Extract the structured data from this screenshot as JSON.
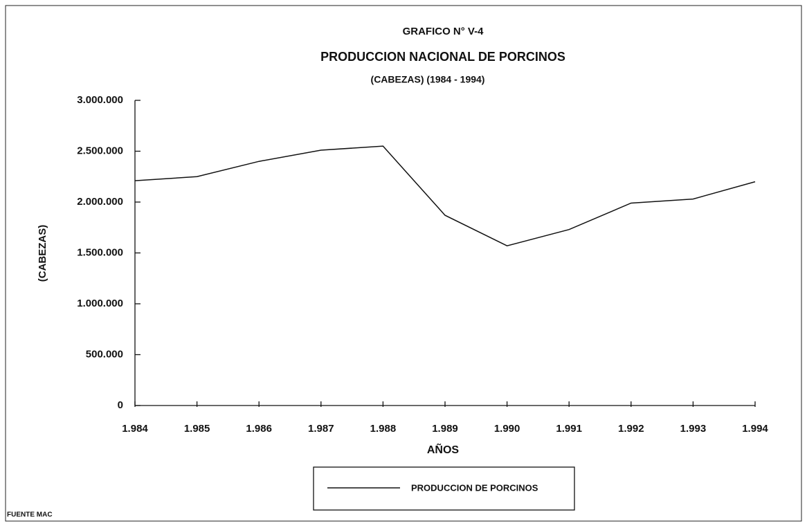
{
  "chart_data": {
    "type": "line",
    "title": "GRAFICO N° V-4",
    "subtitle": "PRODUCCION NACIONAL DE PORCINOS",
    "period": "(CABEZAS) (1984 - 1994)",
    "y_label": "(CABEZAS)",
    "x_label": "AÑOS",
    "source": "FUENTE MAC",
    "categories": [
      "1.984",
      "1.985",
      "1.986",
      "1.987",
      "1.988",
      "1.989",
      "1.990",
      "1.991",
      "1.992",
      "1.993",
      "1.994"
    ],
    "series": [
      {
        "name": "PRODUCCION DE PORCINOS",
        "color": "#111111",
        "values": [
          2210000,
          2250000,
          2400000,
          2510000,
          2550000,
          1870000,
          1570000,
          1730000,
          1990000,
          2030000,
          2200000
        ]
      }
    ],
    "ylim": [
      0,
      3000000
    ],
    "yticks": [
      0,
      {
        "value": 500000,
        "label": "500.000"
      },
      {
        "value": 1000000,
        "label": "1.000.000"
      },
      {
        "value": 1500000,
        "label": "1.500.000"
      },
      {
        "value": 2000000,
        "label": "2.000.000"
      },
      {
        "value": 2500000,
        "label": "2.500.000"
      },
      {
        "value": 3000000,
        "label": "3.000.000"
      }
    ],
    "legend": "bottom"
  }
}
